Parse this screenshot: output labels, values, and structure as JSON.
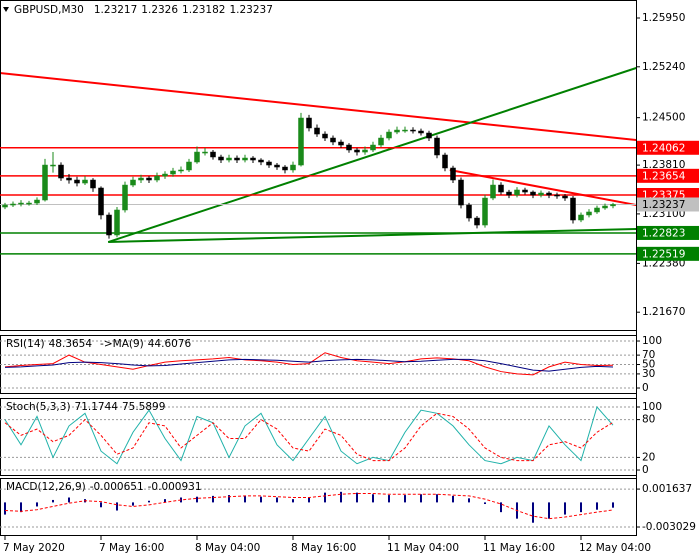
{
  "chart_data": {
    "type": "candlestick",
    "symbol": "GBPUSD,M30",
    "up_color": "#1a8a1a",
    "down_color": "#000000",
    "ylim": [
      1.21411,
      1.26212
    ],
    "yticks": [
      {
        "value": 1.2595,
        "label": "1.25950"
      },
      {
        "value": 1.2524,
        "label": "1.25240"
      },
      {
        "value": 1.245,
        "label": "1.24500"
      },
      {
        "value": 1.2381,
        "label": "1.23810"
      },
      {
        "value": 1.231,
        "label": "1.23100"
      },
      {
        "value": 1.2238,
        "label": "1.22380"
      },
      {
        "value": 1.2167,
        "label": "1.21670"
      }
    ],
    "xticks": [
      {
        "value": 0,
        "label": "7 May 2020"
      },
      {
        "value": 12,
        "label": "7 May 16:00"
      },
      {
        "value": 24,
        "label": "8 May 04:00"
      },
      {
        "value": 36,
        "label": "8 May 16:00"
      },
      {
        "value": 48,
        "label": "11 May 04:00"
      },
      {
        "value": 60,
        "label": "11 May 16:00"
      },
      {
        "value": 72,
        "label": "12 May 04:00"
      }
    ],
    "ohlc": [
      [
        1.232,
        1.2326,
        1.2317,
        1.23229
      ],
      [
        1.23229,
        1.2328,
        1.232,
        1.23244
      ],
      [
        1.23244,
        1.233,
        1.2321,
        1.23258
      ],
      [
        1.23258,
        1.2329,
        1.2322,
        1.23258
      ],
      [
        1.23258,
        1.2334,
        1.2323,
        1.23302
      ],
      [
        1.23302,
        1.239,
        1.2328,
        1.23811
      ],
      [
        1.23811,
        1.24,
        1.237,
        1.23811
      ],
      [
        1.23811,
        1.2385,
        1.2358,
        1.23622
      ],
      [
        1.23622,
        1.2368,
        1.2354,
        1.23593
      ],
      [
        1.23593,
        1.2364,
        1.235,
        1.23549
      ],
      [
        1.23549,
        1.2365,
        1.2352,
        1.23593
      ],
      [
        1.23593,
        1.2362,
        1.2342,
        1.23477
      ],
      [
        1.23477,
        1.235,
        1.2302,
        1.23084
      ],
      [
        1.23084,
        1.2312,
        1.2274,
        1.22793
      ],
      [
        1.22793,
        1.232,
        1.2276,
        1.23157
      ],
      [
        1.23157,
        1.2357,
        1.2312,
        1.2352
      ],
      [
        1.2352,
        1.2364,
        1.2349,
        1.23593
      ],
      [
        1.23593,
        1.2367,
        1.2355,
        1.23622
      ],
      [
        1.23622,
        1.2365,
        1.2355,
        1.23593
      ],
      [
        1.23593,
        1.237,
        1.2356,
        1.23651
      ],
      [
        1.23651,
        1.2372,
        1.2361,
        1.2368
      ],
      [
        1.2368,
        1.2377,
        1.2364,
        1.23724
      ],
      [
        1.23724,
        1.2379,
        1.2369,
        1.23739
      ],
      [
        1.23739,
        1.239,
        1.2371,
        1.23855
      ],
      [
        1.23855,
        1.2408,
        1.2383,
        1.24
      ],
      [
        1.24,
        1.2406,
        1.2395,
        1.24
      ],
      [
        1.24,
        1.2403,
        1.2389,
        1.23928
      ],
      [
        1.23928,
        1.2396,
        1.2384,
        1.23884
      ],
      [
        1.23884,
        1.2396,
        1.2385,
        1.23913
      ],
      [
        1.23913,
        1.2395,
        1.2384,
        1.23884
      ],
      [
        1.23884,
        1.2396,
        1.2385,
        1.23913
      ],
      [
        1.23913,
        1.2394,
        1.2384,
        1.23884
      ],
      [
        1.23884,
        1.2391,
        1.2381,
        1.23855
      ],
      [
        1.23855,
        1.2388,
        1.2377,
        1.23811
      ],
      [
        1.23811,
        1.2384,
        1.2374,
        1.23782
      ],
      [
        1.23782,
        1.2381,
        1.2369,
        1.23739
      ],
      [
        1.23739,
        1.2386,
        1.237,
        1.23811
      ],
      [
        1.23811,
        1.2457,
        1.2379,
        1.24495
      ],
      [
        1.24495,
        1.2454,
        1.243,
        1.2435
      ],
      [
        1.2435,
        1.244,
        1.2422,
        1.24262
      ],
      [
        1.24262,
        1.243,
        1.2416,
        1.24204
      ],
      [
        1.24204,
        1.2424,
        1.241,
        1.24146
      ],
      [
        1.24146,
        1.2418,
        1.2406,
        1.24102
      ],
      [
        1.24102,
        1.2413,
        1.2399,
        1.2403
      ],
      [
        1.2403,
        1.2406,
        1.2395,
        1.24
      ],
      [
        1.24,
        1.2408,
        1.2396,
        1.2403
      ],
      [
        1.2403,
        1.2415,
        1.24,
        1.24102
      ],
      [
        1.24102,
        1.2425,
        1.2407,
        1.24204
      ],
      [
        1.24204,
        1.2433,
        1.2417,
        1.24291
      ],
      [
        1.24291,
        1.2437,
        1.2426,
        1.2432
      ],
      [
        1.2432,
        1.2437,
        1.2428,
        1.2432
      ],
      [
        1.2432,
        1.2436,
        1.2427,
        1.24306
      ],
      [
        1.24306,
        1.2434,
        1.2424,
        1.24277
      ],
      [
        1.24277,
        1.2431,
        1.2416,
        1.24204
      ],
      [
        1.24204,
        1.2424,
        1.2391,
        1.23957
      ],
      [
        1.23957,
        1.2399,
        1.2372,
        1.23768
      ],
      [
        1.23768,
        1.238,
        1.2355,
        1.23593
      ],
      [
        1.23593,
        1.2363,
        1.2318,
        1.23229
      ],
      [
        1.23229,
        1.2326,
        1.2299,
        1.2304
      ],
      [
        1.2304,
        1.2307,
        1.2289,
        1.22938
      ],
      [
        1.22938,
        1.2338,
        1.229,
        1.23331
      ],
      [
        1.23331,
        1.236,
        1.233,
        1.2352
      ],
      [
        1.2352,
        1.2356,
        1.2338,
        1.23418
      ],
      [
        1.23418,
        1.2345,
        1.2333,
        1.23375
      ],
      [
        1.23375,
        1.2349,
        1.2334,
        1.23448
      ],
      [
        1.23448,
        1.2348,
        1.2338,
        1.23418
      ],
      [
        1.23418,
        1.2344,
        1.2333,
        1.23375
      ],
      [
        1.23375,
        1.2344,
        1.2334,
        1.23404
      ],
      [
        1.23404,
        1.2343,
        1.2333,
        1.23375
      ],
      [
        1.23375,
        1.2341,
        1.2332,
        1.2336
      ],
      [
        1.2336,
        1.2339,
        1.2329,
        1.23331
      ],
      [
        1.23331,
        1.2336,
        1.2296,
        1.23011
      ],
      [
        1.23011,
        1.2312,
        1.2298,
        1.23084
      ],
      [
        1.23084,
        1.2317,
        1.2305,
        1.23128
      ],
      [
        1.23128,
        1.2322,
        1.231,
        1.23186
      ],
      [
        1.23186,
        1.2325,
        1.2316,
        1.23215
      ],
      [
        1.23217,
        1.2326,
        1.23182,
        1.23237
      ]
    ],
    "levels": [
      {
        "value": 1.24062,
        "color": "#ff0000"
      },
      {
        "value": 1.23654,
        "color": "#ff0000"
      },
      {
        "value": 1.23375,
        "color": "#ff0000"
      },
      {
        "value": 1.22823,
        "color": "#008000"
      },
      {
        "value": 1.22519,
        "color": "#008000"
      }
    ],
    "trend_lines": [
      {
        "x": [
          -0.625,
          78.9
        ],
        "y": [
          1.2515,
          1.24175
        ],
        "color": "#ff0000"
      },
      {
        "x": [
          12.9,
          78.9
        ],
        "y": [
          1.22691,
          1.25223
        ],
        "color": "#008000"
      },
      {
        "x": [
          12.9,
          78.9
        ],
        "y": [
          1.22691,
          1.2288
        ],
        "color": "#008000"
      },
      {
        "x": [
          55.6,
          78.9
        ],
        "y": [
          1.23739,
          1.23229
        ],
        "color": "#ff0000"
      }
    ],
    "current_color": "#c0c0c0",
    "indicators": [
      {
        "type": "rsi",
        "title": "RSI(14)",
        "ylim": [
          -10.6,
          112.8
        ],
        "yticks": [
          100,
          70,
          50,
          30,
          0
        ],
        "series": [
          {
            "kind": "line",
            "color": "#ff0000",
            "values": [
              45,
              48,
              50,
              52,
              70,
              55,
              50,
              45,
              40,
              48,
              55,
              58,
              60,
              62,
              65,
              60,
              58,
              55,
              50,
              52,
              75,
              65,
              58,
              55,
              52,
              56,
              62,
              64,
              62,
              58,
              45,
              35,
              30,
              28,
              45,
              55,
              50,
              48,
              48.3654
            ]
          },
          {
            "kind": "line",
            "prefix": "->MA(9)",
            "color": "#000080",
            "values": [
              44,
              45,
              47,
              49,
              54,
              55,
              54,
              52,
              49,
              47,
              48,
              51,
              54,
              57,
              60,
              61,
              60,
              59,
              57,
              55,
              58,
              60,
              61,
              60,
              58,
              56,
              57,
              59,
              61,
              61,
              58,
              52,
              45,
              38,
              36,
              40,
              44,
              46,
              44.6076
            ]
          }
        ]
      },
      {
        "type": "stoch",
        "title": "Stoch(5,3,3)",
        "ylim": [
          -7.9,
          114.3
        ],
        "yticks": [
          100,
          80,
          20,
          0
        ],
        "series": [
          {
            "kind": "line",
            "color": "#20b2aa",
            "values": [
              80,
              40,
              85,
              20,
              70,
              90,
              30,
              10,
              60,
              95,
              50,
              15,
              85,
              75,
              20,
              70,
              90,
              40,
              15,
              50,
              85,
              30,
              10,
              20,
              15,
              60,
              95,
              90,
              70,
              40,
              15,
              10,
              20,
              15,
              70,
              40,
              15,
              100,
              71.1744
            ]
          },
          {
            "kind": "line",
            "dashed": true,
            "color": "#ff0000",
            "values": [
              75,
              55,
              65,
              45,
              55,
              80,
              55,
              25,
              35,
              75,
              70,
              35,
              55,
              75,
              50,
              50,
              80,
              65,
              35,
              30,
              65,
              55,
              25,
              15,
              15,
              35,
              70,
              90,
              85,
              65,
              35,
              20,
              15,
              15,
              40,
              45,
              35,
              60,
              75.5899
            ]
          }
        ]
      },
      {
        "type": "macd",
        "title": "MACD(12,26,9)",
        "ylim": [
          -0.004011,
          0.003
        ],
        "yticks": [
          0.001637,
          -0.003029
        ],
        "series": [
          {
            "kind": "histogram",
            "color": "#000080",
            "values": [
              -0.0015,
              -0.0012,
              -0.0005,
              0.0003,
              0.0006,
              0.0004,
              -0.0006,
              -0.001,
              -0.0004,
              0.0002,
              0.0004,
              0.0006,
              0.0007,
              0.0008,
              0.0009,
              0.0008,
              0.0007,
              0.0006,
              0.0004,
              0.0006,
              0.0012,
              0.0013,
              0.0012,
              0.001,
              0.0009,
              0.0009,
              0.001,
              0.001,
              0.0008,
              0.0005,
              -0.0002,
              -0.0012,
              -0.002,
              -0.0025,
              -0.002,
              -0.0015,
              -0.0012,
              -0.0009,
              -0.000651
            ]
          },
          {
            "kind": "line",
            "dashed": true,
            "color": "#ff0000",
            "values": [
              -0.001,
              -0.0011,
              -0.0009,
              -0.0005,
              -0.0001,
              0.0002,
              0.0001,
              -0.0003,
              -0.0005,
              -0.0003,
              0,
              0.0003,
              0.0005,
              0.0006,
              0.0007,
              0.0008,
              0.0008,
              0.0007,
              0.0006,
              0.0006,
              0.0008,
              0.001,
              0.0011,
              0.0011,
              0.001,
              0.001,
              0.001,
              0.001,
              0.0009,
              0.0008,
              0.0004,
              -0.0002,
              -0.001,
              -0.0017,
              -0.002,
              -0.0018,
              -0.0015,
              -0.0012,
              -0.000931
            ]
          }
        ]
      }
    ]
  }
}
